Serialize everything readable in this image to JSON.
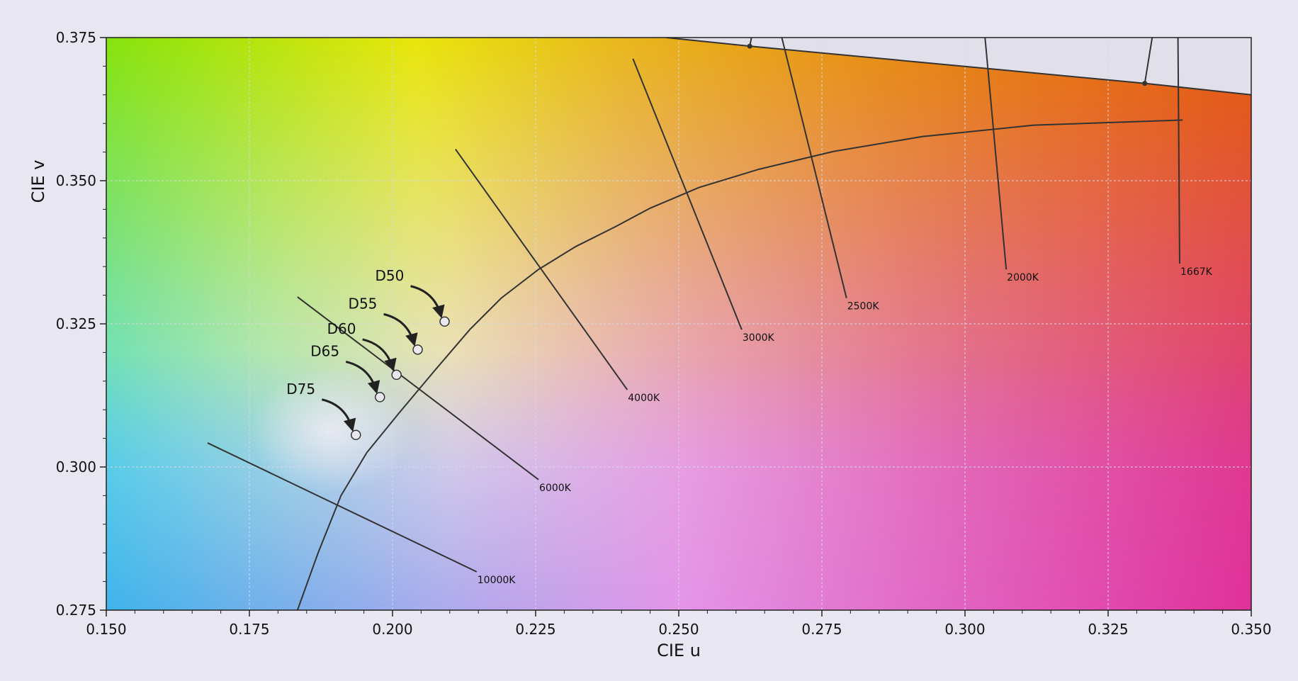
{
  "chart_data": {
    "type": "scatter",
    "title": "",
    "xlabel": "CIE u",
    "ylabel": "CIE v",
    "xlim": [
      0.15,
      0.35
    ],
    "ylim": [
      0.275,
      0.375
    ],
    "grid": true,
    "x_ticks": [
      "0.150",
      "0.175",
      "0.200",
      "0.225",
      "0.250",
      "0.275",
      "0.300",
      "0.325",
      "0.350"
    ],
    "y_ticks": [
      "0.275",
      "0.300",
      "0.325",
      "0.350",
      "0.375"
    ],
    "spectral_locus": [
      [
        0.2478,
        0.375
      ],
      [
        0.2624,
        0.3735
      ],
      [
        0.3314,
        0.367
      ],
      [
        0.35,
        0.365
      ]
    ],
    "planckian_locus": [
      [
        0.1834,
        0.275
      ],
      [
        0.187,
        0.285
      ],
      [
        0.191,
        0.295
      ],
      [
        0.1955,
        0.3025
      ],
      [
        0.2012,
        0.3095
      ],
      [
        0.2075,
        0.317
      ],
      [
        0.2135,
        0.324
      ],
      [
        0.219,
        0.3295
      ],
      [
        0.2255,
        0.3345
      ],
      [
        0.232,
        0.3385
      ],
      [
        0.239,
        0.342
      ],
      [
        0.245,
        0.3452
      ],
      [
        0.2535,
        0.3488
      ],
      [
        0.264,
        0.352
      ],
      [
        0.277,
        0.3551
      ],
      [
        0.2925,
        0.3577
      ],
      [
        0.312,
        0.3597
      ],
      [
        0.338,
        0.3606
      ]
    ],
    "isotherms": [
      {
        "label": "10000K",
        "x1": 0.1677,
        "y1": 0.3042,
        "x2": 0.2147,
        "y2": 0.2817
      },
      {
        "label": "6000K",
        "x1": 0.1834,
        "y1": 0.3297,
        "x2": 0.2255,
        "y2": 0.2978
      },
      {
        "label": "4000K",
        "x1": 0.211,
        "y1": 0.3555,
        "x2": 0.241,
        "y2": 0.3135
      },
      {
        "label": "3000K",
        "x1": 0.242,
        "y1": 0.3713,
        "x2": 0.261,
        "y2": 0.324
      },
      {
        "label": "2500K",
        "x1": 0.268,
        "y1": 0.375,
        "x2": 0.2793,
        "y2": 0.3295
      },
      {
        "label": "2000K",
        "x1": 0.3035,
        "y1": 0.375,
        "x2": 0.3072,
        "y2": 0.3345
      },
      {
        "label": "1667K",
        "x1": 0.3372,
        "y1": 0.375,
        "x2": 0.3375,
        "y2": 0.3355
      }
    ],
    "isotherm_extensions": [
      {
        "x1": 0.2627,
        "y1": 0.375,
        "x2": 0.2624,
        "y2": 0.3735
      },
      {
        "x1": 0.3327,
        "y1": 0.375,
        "x2": 0.3314,
        "y2": 0.367
      }
    ],
    "whitepoints": [
      {
        "label": "D50",
        "u": 0.2091,
        "v": 0.3254
      },
      {
        "label": "D55",
        "u": 0.2044,
        "v": 0.3205
      },
      {
        "label": "D60",
        "u": 0.2007,
        "v": 0.3161
      },
      {
        "label": "D65",
        "u": 0.1978,
        "v": 0.3122
      },
      {
        "label": "D75",
        "u": 0.1936,
        "v": 0.3056
      }
    ],
    "colors": {
      "background": "#e8e7f1",
      "locus_line": "#333333",
      "grid": "#d8d8e4",
      "marker_fill": "#e9e8ee",
      "marker_edge": "#333333"
    }
  }
}
